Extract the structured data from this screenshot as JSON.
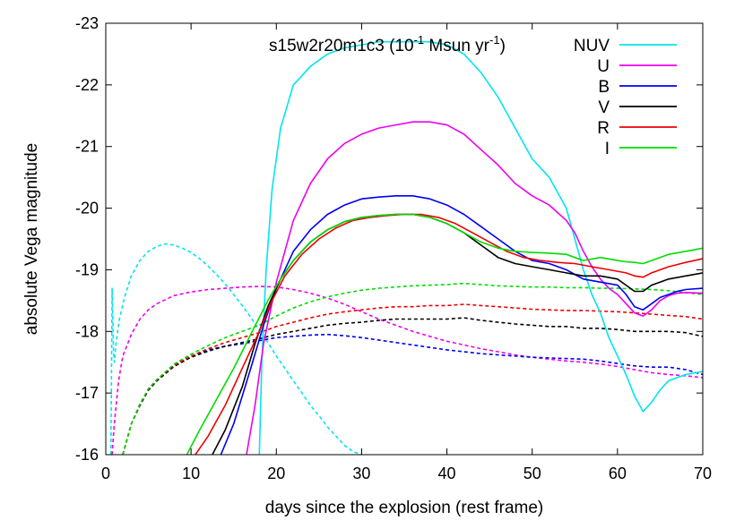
{
  "chart_data": {
    "type": "line",
    "xlabel": "days since the explosion (rest frame)",
    "ylabel": "absolute Vega magnitude",
    "xlim": [
      0,
      70
    ],
    "ylim": [
      -16,
      -23
    ],
    "x_ticks": [
      0,
      10,
      20,
      30,
      40,
      50,
      60,
      70
    ],
    "y_ticks": [
      -16,
      -17,
      -18,
      -19,
      -20,
      -21,
      -22,
      -23
    ],
    "grid": false,
    "legend_position": "top-right",
    "legend_title": {
      "prefix": "s15w2r20m1c3 (10",
      "sup1": "-1",
      "middle": " Msun yr",
      "sup2": "-1",
      "suffix": ")"
    },
    "series": [
      {
        "name": "NUV",
        "color": "#00e5ee",
        "style": "solid",
        "x": [
          18.0,
          18.3,
          18.8,
          19.5,
          20.5,
          22,
          24,
          26,
          28,
          30,
          32,
          34,
          36,
          38,
          40,
          42,
          44,
          46,
          48,
          50,
          52,
          54,
          55,
          56,
          57,
          58,
          59,
          60,
          61,
          62,
          63,
          64,
          65,
          66,
          67,
          68,
          70
        ],
        "y": [
          -16,
          -17.5,
          -19.0,
          -20.3,
          -21.3,
          -22.0,
          -22.3,
          -22.5,
          -22.6,
          -22.65,
          -22.7,
          -22.7,
          -22.7,
          -22.7,
          -22.65,
          -22.5,
          -22.2,
          -21.8,
          -21.3,
          -20.8,
          -20.5,
          -20.0,
          -19.5,
          -19.0,
          -18.6,
          -18.3,
          -17.9,
          -17.6,
          -17.3,
          -16.95,
          -16.7,
          -16.85,
          -17.05,
          -17.2,
          -17.25,
          -17.3,
          -17.35
        ]
      },
      {
        "name": "U",
        "color": "#ee00ee",
        "style": "solid",
        "x": [
          16.5,
          17.5,
          18.5,
          20,
          22,
          24,
          26,
          28,
          30,
          32,
          34,
          36,
          38,
          40,
          42,
          44,
          46,
          48,
          50,
          52,
          54,
          55,
          56,
          57,
          58,
          59,
          60,
          61,
          62,
          63,
          64,
          65,
          66,
          67,
          68,
          70
        ],
        "y": [
          -16,
          -16.8,
          -17.8,
          -18.8,
          -19.8,
          -20.4,
          -20.8,
          -21.05,
          -21.2,
          -21.3,
          -21.35,
          -21.4,
          -21.4,
          -21.35,
          -21.2,
          -20.95,
          -20.7,
          -20.4,
          -20.2,
          -20.05,
          -19.8,
          -19.6,
          -19.3,
          -19.05,
          -18.85,
          -18.7,
          -18.6,
          -18.45,
          -18.3,
          -18.25,
          -18.35,
          -18.5,
          -18.58,
          -18.62,
          -18.63,
          -18.62
        ]
      },
      {
        "name": "B",
        "color": "#0000ee",
        "style": "solid",
        "x": [
          13.5,
          15,
          17,
          18.5,
          20,
          22,
          24,
          26,
          28,
          30,
          32,
          34,
          36,
          38,
          40,
          42,
          44,
          46,
          48,
          50,
          52,
          54,
          56,
          58,
          60,
          61,
          62,
          63,
          64,
          65,
          66,
          67,
          68,
          70
        ],
        "y": [
          -16,
          -16.5,
          -17.4,
          -18.1,
          -18.7,
          -19.3,
          -19.65,
          -19.9,
          -20.05,
          -20.15,
          -20.18,
          -20.2,
          -20.2,
          -20.15,
          -20.05,
          -19.9,
          -19.7,
          -19.5,
          -19.3,
          -19.15,
          -19.1,
          -19.0,
          -18.85,
          -18.8,
          -18.75,
          -18.6,
          -18.4,
          -18.35,
          -18.45,
          -18.55,
          -18.6,
          -18.65,
          -18.68,
          -18.7
        ]
      },
      {
        "name": "V",
        "color": "#000000",
        "style": "solid",
        "x": [
          12.5,
          14,
          16,
          17.5,
          19,
          20.5,
          22,
          24,
          26,
          28,
          30,
          32,
          34,
          36,
          38,
          40,
          42,
          44,
          46,
          48,
          50,
          52,
          54,
          56,
          58,
          60,
          61,
          62,
          63,
          64,
          66,
          68,
          70
        ],
        "y": [
          -16,
          -16.4,
          -17.1,
          -17.8,
          -18.4,
          -18.85,
          -19.15,
          -19.45,
          -19.65,
          -19.78,
          -19.85,
          -19.88,
          -19.9,
          -19.9,
          -19.85,
          -19.75,
          -19.6,
          -19.4,
          -19.2,
          -19.1,
          -19.05,
          -19.0,
          -18.95,
          -18.9,
          -18.9,
          -18.85,
          -18.75,
          -18.65,
          -18.65,
          -18.75,
          -18.85,
          -18.9,
          -18.95
        ]
      },
      {
        "name": "R",
        "color": "#ee0000",
        "style": "solid",
        "x": [
          10.5,
          12,
          14,
          16,
          18,
          19.5,
          21,
          23,
          25,
          27,
          29,
          31,
          33,
          35,
          37,
          39,
          41,
          43,
          45,
          47,
          49,
          51,
          53,
          55,
          57,
          59,
          61,
          62,
          63,
          64,
          66,
          68,
          70
        ],
        "y": [
          -16,
          -16.3,
          -16.8,
          -17.4,
          -18.0,
          -18.5,
          -18.9,
          -19.25,
          -19.5,
          -19.68,
          -19.8,
          -19.85,
          -19.88,
          -19.9,
          -19.9,
          -19.85,
          -19.75,
          -19.6,
          -19.45,
          -19.3,
          -19.2,
          -19.15,
          -19.12,
          -19.1,
          -19.05,
          -19.0,
          -18.95,
          -18.9,
          -18.88,
          -18.95,
          -19.05,
          -19.12,
          -19.18
        ]
      },
      {
        "name": "I",
        "color": "#00dd00",
        "style": "solid",
        "x": [
          9.5,
          11,
          13,
          15,
          17,
          19,
          20.5,
          22,
          24,
          26,
          28,
          30,
          32,
          34,
          36,
          38,
          40,
          42,
          44,
          46,
          48,
          50,
          52,
          54,
          56,
          58,
          60,
          61,
          62,
          63,
          64,
          66,
          68,
          70
        ],
        "y": [
          -16,
          -16.4,
          -16.9,
          -17.4,
          -17.95,
          -18.5,
          -18.85,
          -19.15,
          -19.45,
          -19.65,
          -19.78,
          -19.85,
          -19.88,
          -19.9,
          -19.9,
          -19.85,
          -19.75,
          -19.6,
          -19.45,
          -19.35,
          -19.3,
          -19.28,
          -19.27,
          -19.25,
          -19.15,
          -19.2,
          -19.15,
          -19.13,
          -19.12,
          -19.1,
          -19.15,
          -19.25,
          -19.3,
          -19.35
        ]
      },
      {
        "name": "",
        "color": "#00e5ee",
        "style": "dashed",
        "x": [
          0.6,
          0.75,
          0.9,
          1.0,
          1.2,
          1.6,
          2.2,
          3.0,
          4.0,
          5.0,
          6.0,
          7.0,
          8.0,
          9.0,
          10.0,
          11.0,
          12.0,
          13.0,
          14.0,
          15.0,
          16.0,
          17.0,
          18.0,
          19.0,
          20.0,
          21.0,
          22.0,
          23.0,
          24.0,
          25.0,
          26.0,
          27.0,
          28.0,
          29.0,
          30.0
        ],
        "y": [
          -16.0,
          -18.7,
          -17.7,
          -17.5,
          -17.8,
          -18.2,
          -18.55,
          -18.9,
          -19.15,
          -19.3,
          -19.38,
          -19.42,
          -19.4,
          -19.35,
          -19.28,
          -19.18,
          -19.06,
          -18.92,
          -18.77,
          -18.6,
          -18.42,
          -18.23,
          -18.02,
          -17.82,
          -17.6,
          -17.4,
          -17.2,
          -17.0,
          -16.8,
          -16.63,
          -16.45,
          -16.3,
          -16.15,
          -16.05,
          -16.0
        ]
      },
      {
        "name": "",
        "color": "#ee00ee",
        "style": "dashed",
        "x": [
          0.75,
          1.0,
          1.5,
          2.0,
          3.0,
          4.0,
          5.0,
          6.0,
          8.0,
          10.0,
          12.0,
          14.0,
          16.0,
          18.0,
          20.0,
          22.0,
          24.0,
          26.0,
          28.0,
          30.0,
          32.0,
          34.0,
          36.0,
          38.0,
          40.0,
          42.0,
          44.0,
          46.0,
          48.0,
          50.0,
          52.0,
          54.0,
          56.0,
          58.0,
          60.0,
          62.0,
          64.0,
          66.0,
          68.0,
          70.0
        ],
        "y": [
          -16.0,
          -16.5,
          -17.2,
          -17.6,
          -17.95,
          -18.2,
          -18.35,
          -18.45,
          -18.58,
          -18.64,
          -18.68,
          -18.7,
          -18.72,
          -18.73,
          -18.72,
          -18.68,
          -18.62,
          -18.54,
          -18.44,
          -18.32,
          -18.2,
          -18.1,
          -18.0,
          -17.92,
          -17.84,
          -17.78,
          -17.72,
          -17.67,
          -17.62,
          -17.58,
          -17.55,
          -17.52,
          -17.5,
          -17.47,
          -17.43,
          -17.38,
          -17.33,
          -17.3,
          -17.28,
          -17.25
        ]
      },
      {
        "name": "",
        "color": "#0000ee",
        "style": "dashed",
        "x": [
          2.0,
          3.0,
          4.0,
          5.0,
          6.0,
          8.0,
          10.0,
          12.0,
          14.0,
          16.0,
          18.0,
          20.0,
          22.0,
          24.0,
          26.0,
          28.0,
          30.0,
          32.0,
          34.0,
          36.0,
          38.0,
          40.0,
          42.0,
          44.0,
          46.0,
          48.0,
          50.0,
          52.0,
          54.0,
          56.0,
          58.0,
          60.0,
          62.0,
          64.0,
          66.0,
          68.0,
          70.0
        ],
        "y": [
          -16.0,
          -16.5,
          -16.8,
          -17.05,
          -17.2,
          -17.45,
          -17.6,
          -17.7,
          -17.76,
          -17.8,
          -17.85,
          -17.9,
          -17.92,
          -17.94,
          -17.95,
          -17.93,
          -17.9,
          -17.86,
          -17.82,
          -17.78,
          -17.74,
          -17.7,
          -17.67,
          -17.64,
          -17.62,
          -17.6,
          -17.58,
          -17.57,
          -17.56,
          -17.55,
          -17.52,
          -17.48,
          -17.44,
          -17.42,
          -17.42,
          -17.38,
          -17.3
        ]
      },
      {
        "name": "",
        "color": "#000000",
        "style": "dashed",
        "x": [
          2.0,
          3.0,
          4.0,
          5.0,
          6.0,
          8.0,
          10.0,
          12.0,
          14.0,
          16.0,
          18.0,
          20.0,
          22.0,
          24.0,
          26.0,
          28.0,
          30.0,
          32.0,
          34.0,
          36.0,
          38.0,
          40.0,
          42.0,
          44.0,
          46.0,
          48.0,
          50.0,
          52.0,
          54.0,
          56.0,
          58.0,
          60.0,
          62.0,
          64.0,
          66.0,
          68.0,
          70.0
        ],
        "y": [
          -16.0,
          -16.5,
          -16.8,
          -17.05,
          -17.2,
          -17.43,
          -17.58,
          -17.68,
          -17.76,
          -17.82,
          -17.88,
          -17.95,
          -18.0,
          -18.05,
          -18.1,
          -18.13,
          -18.15,
          -18.18,
          -18.2,
          -18.2,
          -18.2,
          -18.2,
          -18.22,
          -18.18,
          -18.15,
          -18.12,
          -18.1,
          -18.08,
          -18.08,
          -18.05,
          -18.05,
          -18.03,
          -18.0,
          -18.0,
          -18.0,
          -17.98,
          -17.92
        ]
      },
      {
        "name": "",
        "color": "#ee0000",
        "style": "dashed",
        "x": [
          2.0,
          3.0,
          4.0,
          5.0,
          6.0,
          8.0,
          10.0,
          12.0,
          14.0,
          16.0,
          18.0,
          20.0,
          22.0,
          24.0,
          26.0,
          28.0,
          30.0,
          32.0,
          34.0,
          36.0,
          38.0,
          40.0,
          42.0,
          44.0,
          46.0,
          48.0,
          50.0,
          52.0,
          54.0,
          56.0,
          58.0,
          60.0,
          62.0,
          64.0,
          66.0,
          68.0,
          70.0
        ],
        "y": [
          -16.0,
          -16.5,
          -16.82,
          -17.07,
          -17.22,
          -17.45,
          -17.6,
          -17.72,
          -17.82,
          -17.9,
          -17.98,
          -18.08,
          -18.15,
          -18.22,
          -18.28,
          -18.32,
          -18.35,
          -18.38,
          -18.4,
          -18.4,
          -18.42,
          -18.42,
          -18.44,
          -18.42,
          -18.4,
          -18.38,
          -18.36,
          -18.35,
          -18.34,
          -18.34,
          -18.33,
          -18.32,
          -18.3,
          -18.28,
          -18.26,
          -18.24,
          -18.2
        ]
      },
      {
        "name": "",
        "color": "#00dd00",
        "style": "dashed",
        "x": [
          2.0,
          3.0,
          4.0,
          5.0,
          6.0,
          8.0,
          10.0,
          12.0,
          14.0,
          16.0,
          18.0,
          20.0,
          22.0,
          24.0,
          26.0,
          28.0,
          30.0,
          32.0,
          34.0,
          36.0,
          38.0,
          40.0,
          42.0,
          44.0,
          46.0,
          48.0,
          50.0,
          52.0,
          54.0,
          56.0,
          58.0,
          60.0,
          62.0,
          64.0,
          66.0,
          68.0,
          70.0
        ],
        "y": [
          -16.0,
          -16.5,
          -16.82,
          -17.07,
          -17.22,
          -17.47,
          -17.63,
          -17.77,
          -17.9,
          -18.0,
          -18.1,
          -18.25,
          -18.38,
          -18.48,
          -18.56,
          -18.62,
          -18.67,
          -18.7,
          -18.72,
          -18.74,
          -18.75,
          -18.76,
          -18.78,
          -18.76,
          -18.74,
          -18.73,
          -18.72,
          -18.72,
          -18.71,
          -18.71,
          -18.7,
          -18.7,
          -18.69,
          -18.68,
          -18.66,
          -18.63,
          -18.6
        ]
      }
    ]
  }
}
